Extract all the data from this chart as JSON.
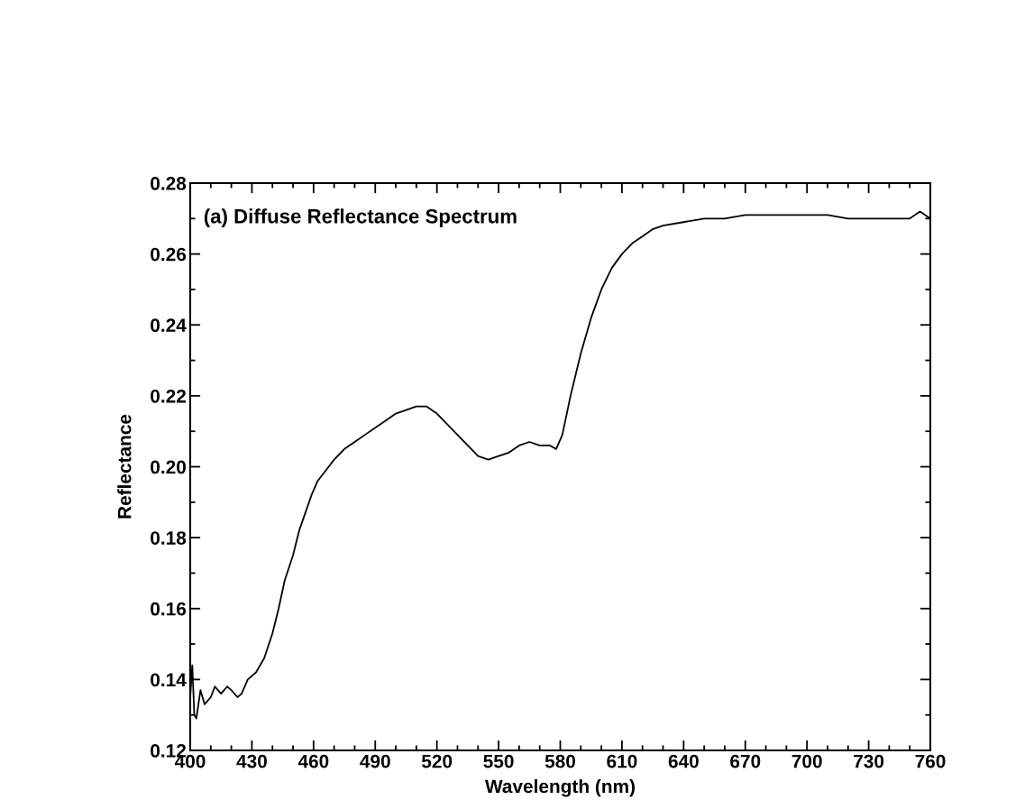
{
  "chart_data": {
    "type": "line",
    "title": "(a) Diffuse Reflectance Spectrum",
    "xlabel": "Wavelength (nm)",
    "ylabel": "Reflectance",
    "xlim": [
      400,
      760
    ],
    "xticks": [
      400,
      430,
      460,
      490,
      520,
      550,
      580,
      610,
      640,
      670,
      700,
      730,
      760
    ],
    "ylim": [
      0.12,
      0.28
    ],
    "yticks": [
      0.12,
      0.14,
      0.16,
      0.18,
      {
        "value": 0.2,
        "label": "0.20"
      },
      0.22,
      0.24,
      0.26,
      0.28
    ],
    "grid": false,
    "series": [
      {
        "color": "#000000",
        "x": [
          400,
          401,
          402,
          403,
          405,
          407,
          410,
          412,
          415,
          418,
          420,
          423,
          425,
          428,
          432,
          436,
          440,
          443,
          446,
          450,
          453,
          456,
          459,
          462,
          466,
          470,
          475,
          480,
          485,
          490,
          495,
          500,
          505,
          510,
          515,
          520,
          525,
          530,
          535,
          540,
          545,
          550,
          555,
          560,
          565,
          570,
          575,
          578,
          581,
          585,
          590,
          595,
          600,
          605,
          610,
          615,
          620,
          625,
          630,
          640,
          650,
          660,
          670,
          680,
          690,
          700,
          710,
          720,
          730,
          740,
          750,
          755,
          760
        ],
        "values": [
          0.135,
          0.144,
          0.13,
          0.129,
          0.137,
          0.133,
          0.135,
          0.138,
          0.136,
          0.138,
          0.137,
          0.135,
          0.136,
          0.14,
          0.142,
          0.146,
          0.153,
          0.16,
          0.168,
          0.175,
          0.182,
          0.187,
          0.192,
          0.196,
          0.199,
          0.202,
          0.205,
          0.207,
          0.209,
          0.211,
          0.213,
          0.215,
          0.216,
          0.217,
          0.217,
          0.215,
          0.212,
          0.209,
          0.206,
          0.203,
          0.202,
          0.203,
          0.204,
          0.206,
          0.207,
          0.206,
          0.206,
          0.205,
          0.209,
          0.22,
          0.232,
          0.242,
          0.25,
          0.256,
          0.26,
          0.263,
          0.265,
          0.267,
          0.268,
          0.269,
          0.27,
          0.27,
          0.271,
          0.271,
          0.271,
          0.271,
          0.271,
          0.27,
          0.27,
          0.27,
          0.27,
          0.272,
          0.27
        ]
      }
    ]
  }
}
